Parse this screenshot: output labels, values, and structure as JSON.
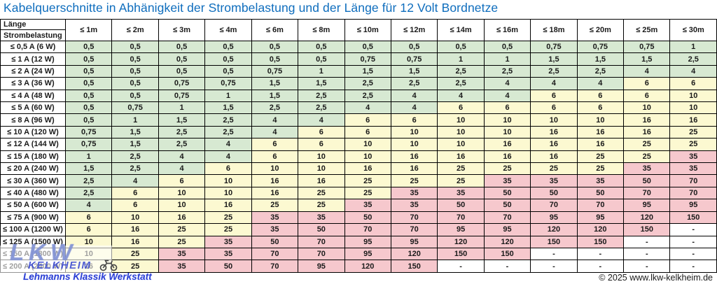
{
  "title": "Kabelquerschnitte in Abhänigkeit der Strombelastung und der Länge für 12 Volt Bordnetze",
  "table": {
    "corner_top": "Länge",
    "corner_bottom": "Strombelastung",
    "columns": [
      "≤ 1m",
      "≤ 2m",
      "≤ 3m",
      "≤ 4m",
      "≤ 6m",
      "≤ 8m",
      "≤ 10m",
      "≤ 12m",
      "≤ 14m",
      "≤ 16m",
      "≤ 18m",
      "≤ 20m",
      "≤ 25m",
      "≤ 30m"
    ],
    "rows": [
      {
        "label": "≤ 0,5 A (6 W)",
        "values": [
          "0,5",
          "0,5",
          "0,5",
          "0,5",
          "0,5",
          "0,5",
          "0,5",
          "0,5",
          "0,5",
          "0,5",
          "0,75",
          "0,75",
          "0,75",
          "1"
        ]
      },
      {
        "label": "≤ 1 A (12 W)",
        "values": [
          "0,5",
          "0,5",
          "0,5",
          "0,5",
          "0,5",
          "0,5",
          "0,75",
          "0,75",
          "1",
          "1",
          "1,5",
          "1,5",
          "1,5",
          "2,5"
        ]
      },
      {
        "label": "≤ 2 A (24 W)",
        "values": [
          "0,5",
          "0,5",
          "0,5",
          "0,5",
          "0,75",
          "1",
          "1,5",
          "1,5",
          "2,5",
          "2,5",
          "2,5",
          "2,5",
          "4",
          "4"
        ]
      },
      {
        "label": "≤ 3 A (36 W)",
        "values": [
          "0,5",
          "0,5",
          "0,75",
          "0,75",
          "1,5",
          "1,5",
          "2,5",
          "2,5",
          "2,5",
          "4",
          "4",
          "4",
          "6",
          "6"
        ]
      },
      {
        "label": "≤ 4 A (48 W)",
        "values": [
          "0,5",
          "0,5",
          "0,75",
          "1",
          "1,5",
          "2,5",
          "2,5",
          "4",
          "4",
          "4",
          "6",
          "6",
          "6",
          "10"
        ]
      },
      {
        "label": "≤ 5 A (60 W)",
        "values": [
          "0,5",
          "0,75",
          "1",
          "1,5",
          "2,5",
          "2,5",
          "4",
          "4",
          "6",
          "6",
          "6",
          "6",
          "10",
          "10"
        ]
      },
      {
        "label": "≤ 8 A (96 W)",
        "values": [
          "0,5",
          "1",
          "1,5",
          "2,5",
          "4",
          "4",
          "6",
          "6",
          "10",
          "10",
          "10",
          "10",
          "16",
          "16"
        ]
      },
      {
        "label": "≤ 10 A (120 W)",
        "values": [
          "0,75",
          "1,5",
          "2,5",
          "2,5",
          "4",
          "6",
          "6",
          "10",
          "10",
          "10",
          "16",
          "16",
          "16",
          "25"
        ]
      },
      {
        "label": "≤ 12 A (144 W)",
        "values": [
          "0,75",
          "1,5",
          "2,5",
          "4",
          "6",
          "6",
          "10",
          "10",
          "10",
          "16",
          "16",
          "16",
          "25",
          "25"
        ]
      },
      {
        "label": "≤ 15 A (180 W)",
        "values": [
          "1",
          "2,5",
          "4",
          "4",
          "6",
          "10",
          "10",
          "16",
          "16",
          "16",
          "16",
          "25",
          "25",
          "35"
        ]
      },
      {
        "label": "≤ 20 A (240 W)",
        "values": [
          "1,5",
          "2,5",
          "4",
          "6",
          "10",
          "10",
          "16",
          "16",
          "25",
          "25",
          "25",
          "25",
          "35",
          "35"
        ]
      },
      {
        "label": "≤ 30 A (360 W)",
        "values": [
          "2,5",
          "4",
          "6",
          "10",
          "16",
          "16",
          "25",
          "25",
          "25",
          "35",
          "35",
          "35",
          "50",
          "70"
        ]
      },
      {
        "label": "≤ 40 A (480 W)",
        "values": [
          "2,5",
          "6",
          "10",
          "10",
          "16",
          "25",
          "25",
          "35",
          "35",
          "50",
          "50",
          "50",
          "70",
          "70"
        ]
      },
      {
        "label": "≤ 50 A (600 W)",
        "values": [
          "4",
          "6",
          "10",
          "16",
          "25",
          "25",
          "35",
          "35",
          "50",
          "50",
          "70",
          "70",
          "95",
          "95"
        ]
      },
      {
        "label": "≤ 75 A (900 W)",
        "values": [
          "6",
          "10",
          "16",
          "25",
          "35",
          "35",
          "50",
          "70",
          "70",
          "70",
          "95",
          "95",
          "120",
          "150"
        ]
      },
      {
        "label": "≤ 100 A (1200 W)",
        "values": [
          "6",
          "16",
          "25",
          "25",
          "35",
          "50",
          "70",
          "70",
          "95",
          "95",
          "120",
          "120",
          "150",
          "-"
        ]
      },
      {
        "label": "≤ 125 A (1500 W)",
        "values": [
          "10",
          "16",
          "25",
          "35",
          "50",
          "70",
          "95",
          "95",
          "120",
          "120",
          "150",
          "150",
          "-",
          "-"
        ]
      },
      {
        "label": "≤ 150 A (1800 W)",
        "values": [
          "10",
          "25",
          "35",
          "35",
          "70",
          "70",
          "95",
          "120",
          "150",
          "150",
          "-",
          "-",
          "-",
          "-"
        ]
      },
      {
        "label": "≤ 200 A (2400 W)",
        "values": [
          "16",
          "25",
          "35",
          "50",
          "70",
          "95",
          "120",
          "150",
          "-",
          "-",
          "-",
          "-",
          "-",
          "-"
        ]
      }
    ]
  },
  "color_rule": {
    "green_max": 4,
    "yellow_max": 25
  },
  "colors": {
    "green": "#d7e9d2",
    "yellow": "#fcf9d1",
    "pink": "#f6c8cd",
    "empty": "#ffffff",
    "title_blue": "#0e6dbd"
  },
  "watermark": {
    "big_text": "LKW",
    "sub_text": "KELKHEIM",
    "slogan": "Lehmanns Klassik Werkstatt",
    "icon": "motorcycle-icon"
  },
  "footer": {
    "copyright": "© 2025 www.lkw-kelkheim.de"
  }
}
